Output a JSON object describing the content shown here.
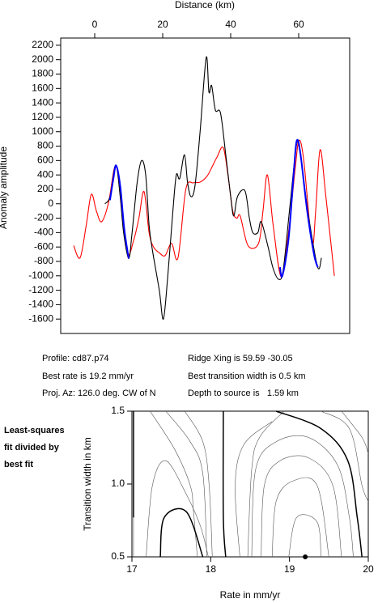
{
  "chart_data": [
    {
      "type": "line",
      "title": "Distance (km)",
      "ylabel": "Anomaly amplitude",
      "xlim": [
        -10,
        75
      ],
      "xticks": [
        0,
        20,
        40,
        60
      ],
      "ylim": [
        -1800,
        2300
      ],
      "yticks": [
        -1600,
        -1400,
        -1200,
        -1000,
        -800,
        -600,
        -400,
        -200,
        0,
        200,
        400,
        600,
        800,
        1000,
        1200,
        1400,
        1600,
        1800,
        2000,
        2200
      ],
      "series": [
        {
          "color": "#ff0000",
          "x": [
            -6.2,
            -4.3,
            -2.5,
            -1,
            0.5,
            2,
            4,
            6.2,
            8,
            9.7,
            11.5,
            13,
            14.5,
            16,
            17.3,
            19,
            20.7,
            22.6,
            24.5,
            26.8,
            29,
            31,
            33,
            34.4,
            36,
            37.8,
            39.2,
            40.6,
            41.8,
            42.8,
            45.1,
            48.2,
            49.5,
            50.8,
            52.5,
            54.9,
            57,
            59,
            60.1,
            61.5,
            63.9,
            65,
            66.3,
            68,
            70.5
          ],
          "values": [
            -580,
            -750,
            -300,
            130,
            -100,
            -250,
            0,
            530,
            -100,
            -700,
            -500,
            -200,
            170,
            -400,
            -600,
            -680,
            -720,
            -550,
            -750,
            200,
            290,
            300,
            380,
            500,
            650,
            780,
            400,
            -100,
            -200,
            -170,
            -580,
            -550,
            -100,
            400,
            -300,
            -1020,
            -400,
            500,
            880,
            600,
            -550,
            -100,
            750,
            100,
            -1000
          ]
        },
        {
          "color": "#000000",
          "x": [
            3,
            4.5,
            6.2,
            7.5,
            8.5,
            10,
            11,
            12.5,
            13.8,
            15,
            16,
            17,
            19,
            20.2,
            21.5,
            23,
            24,
            25,
            26.4,
            27.3,
            28.3,
            29.5,
            31,
            32.8,
            33.6,
            34.4,
            35.5,
            37,
            38.5,
            40,
            40.9,
            42,
            44.2,
            45.5,
            46.5,
            48,
            49,
            51,
            52.5,
            54.2,
            55.5,
            57.5,
            59.6,
            61,
            63,
            65.6,
            66.7
          ],
          "values": [
            0,
            100,
            540,
            100,
            -400,
            -760,
            -400,
            300,
            600,
            400,
            -300,
            -650,
            -1200,
            -1600,
            -1000,
            -100,
            400,
            350,
            680,
            300,
            100,
            250,
            1000,
            2030,
            1550,
            1640,
            1300,
            1260,
            700,
            100,
            -170,
            100,
            180,
            -200,
            -400,
            -400,
            -250,
            -600,
            -900,
            -1050,
            -900,
            0,
            870,
            500,
            -200,
            -880,
            -750
          ]
        },
        {
          "color": "#0000ff",
          "x": [
            4.5,
            5.5,
            6.3,
            7.5,
            8.7,
            10
          ],
          "values": [
            50,
            350,
            530,
            250,
            -350,
            -760
          ]
        },
        {
          "color": "#0000ff",
          "x": [
            54.5,
            55.2,
            57,
            58.5,
            59.4,
            60.5,
            62.5,
            64.5,
            65.6
          ],
          "values": [
            -880,
            -1000,
            -500,
            400,
            870,
            700,
            -100,
            -700,
            -880
          ]
        }
      ],
      "notes": [
        "Profile: cd87.p74",
        "Best rate is 19.2 mm/yr",
        "Proj. Az: 126.0 deg. CW of N",
        "Ridge Xing is 59.59 -30.05",
        "Best transition width is 0.5 km",
        "Depth to source is   1.59 km"
      ]
    },
    {
      "type": "contour",
      "title": [
        "Least-squares",
        "fit divided by",
        "best fit"
      ],
      "xlabel": "Rate in mm/yr",
      "ylabel": "Transition width in km",
      "xlim": [
        17,
        20
      ],
      "xticks": [
        17,
        18,
        19,
        20
      ],
      "ylim": [
        0.5,
        1.5
      ],
      "yticks": [
        0.5,
        {
          "value": 1,
          "label": "1.0"
        },
        1.5
      ],
      "contours": [
        {
          "color": "#000000",
          "x": [
            17.02,
            17.02
          ],
          "y": [
            1.5,
            0.77
          ]
        },
        {
          "color": "#555555",
          "x": [
            17.02,
            17.02
          ],
          "y": [
            0.77,
            0.5
          ]
        },
        {
          "color": "#555555",
          "x": [
            17.23,
            17.54,
            17.74,
            17.78,
            17.83
          ],
          "y": [
            1.5,
            1.24,
            0.99,
            0.82,
            0.5
          ]
        },
        {
          "color": "#555555",
          "x": [
            17.43,
            17.74,
            17.9,
            17.95
          ],
          "y": [
            1.5,
            1.29,
            1.07,
            0.5
          ]
        },
        {
          "color": "#555555",
          "x": [
            17.67,
            17.9,
            17.98,
            18.02
          ],
          "y": [
            1.5,
            1.29,
            0.99,
            0.5
          ]
        },
        {
          "color": "#000000",
          "x": [
            18.16,
            18.16,
            18.19
          ],
          "y": [
            1.5,
            0.77,
            0.5
          ]
        },
        {
          "color": "#000000",
          "x": [
            17.36,
            17.41,
            17.69,
            17.9
          ],
          "y": [
            0.5,
            0.77,
            0.81,
            0.5
          ]
        },
        {
          "color": "#555555",
          "x": [
            17.18,
            17.26,
            17.43,
            17.69,
            17.87,
            17.97
          ],
          "y": [
            0.5,
            0.99,
            1.16,
            0.93,
            0.71,
            0.5
          ]
        },
        {
          "color": "#555555",
          "x": [
            18.37,
            18.31,
            18.42,
            18.78
          ],
          "y": [
            0.5,
            0.99,
            1.27,
            1.43
          ]
        },
        {
          "color": "#555555",
          "x": [
            18.47,
            18.52,
            18.62,
            18.93
          ],
          "y": [
            0.5,
            1.1,
            1.32,
            1.5
          ]
        },
        {
          "color": "#000000",
          "x": [
            18.83,
            19.4,
            19.74,
            19.86,
            19.92
          ],
          "y": [
            1.5,
            1.38,
            1.16,
            0.77,
            0.5
          ]
        },
        {
          "color": "#555555",
          "x": [
            18.52,
            18.57,
            18.83,
            19.24,
            19.61,
            19.76,
            19.81
          ],
          "y": [
            0.5,
            1.1,
            1.29,
            1.32,
            1.13,
            0.77,
            0.5
          ]
        },
        {
          "color": "#555555",
          "x": [
            18.64,
            18.68,
            18.88,
            19.24,
            19.55,
            19.66
          ],
          "y": [
            0.5,
            0.99,
            1.16,
            1.18,
            0.99,
            0.5
          ]
        },
        {
          "color": "#555555",
          "x": [
            18.78,
            18.83,
            19.04,
            19.35,
            19.5
          ],
          "y": [
            0.5,
            0.88,
            1.02,
            0.99,
            0.5
          ]
        },
        {
          "color": "#555555",
          "x": [
            18.99,
            19.09,
            19.35,
            19.4
          ],
          "y": [
            0.5,
            0.77,
            0.74,
            0.5
          ]
        },
        {
          "color": "#555555",
          "x": [
            19.4,
            19.76,
            19.92,
            20
          ],
          "y": [
            1.5,
            1.38,
            0.99,
            0.88
          ]
        },
        {
          "color": "#555555",
          "x": [
            19.66,
            19.92,
            20
          ],
          "y": [
            1.5,
            1.32,
            1.21
          ]
        }
      ],
      "best_fit": {
        "x": 19.2,
        "y": 0.5
      }
    }
  ]
}
